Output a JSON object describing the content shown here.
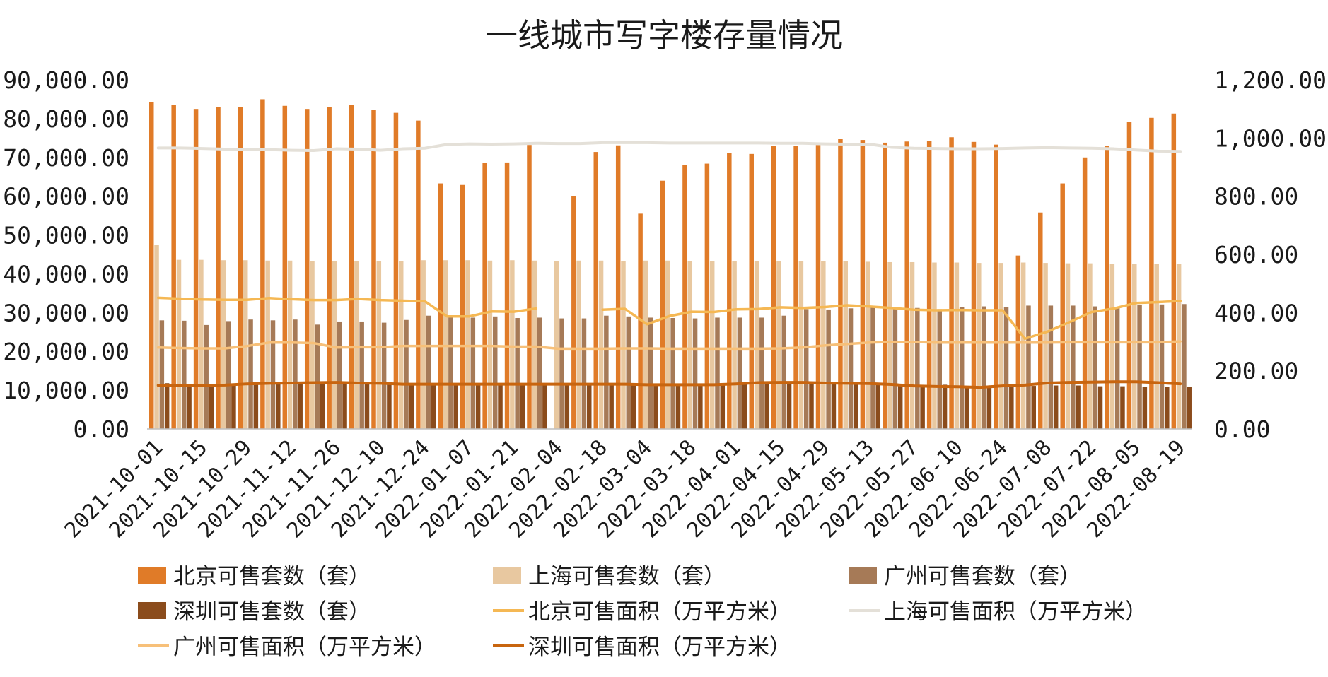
{
  "chart_data": {
    "type": "bar",
    "title": "一线城市写字楼存量情况",
    "x": [
      "2021-10-01",
      "2021-10-08",
      "2021-10-15",
      "2021-10-22",
      "2021-10-29",
      "2021-11-05",
      "2021-11-12",
      "2021-11-19",
      "2021-11-26",
      "2021-12-03",
      "2021-12-10",
      "2021-12-17",
      "2021-12-24",
      "2021-12-31",
      "2022-01-07",
      "2022-01-14",
      "2022-01-21",
      "2022-01-28",
      "2022-02-04",
      "2022-02-11",
      "2022-02-18",
      "2022-02-25",
      "2022-03-04",
      "2022-03-11",
      "2022-03-18",
      "2022-03-25",
      "2022-04-01",
      "2022-04-08",
      "2022-04-15",
      "2022-04-22",
      "2022-04-29",
      "2022-05-06",
      "2022-05-13",
      "2022-05-20",
      "2022-05-27",
      "2022-06-03",
      "2022-06-10",
      "2022-06-17",
      "2022-06-24",
      "2022-07-01",
      "2022-07-08",
      "2022-07-15",
      "2022-07-22",
      "2022-07-29",
      "2022-08-05",
      "2022-08-12",
      "2022-08-19"
    ],
    "x_tick_labels": [
      "2021-10-01",
      "2021-10-15",
      "2021-10-29",
      "2021-11-12",
      "2021-11-26",
      "2021-12-10",
      "2021-12-24",
      "2022-01-07",
      "2022-01-21",
      "2022-02-04",
      "2022-02-18",
      "2022-03-04",
      "2022-03-18",
      "2022-04-01",
      "2022-04-15",
      "2022-04-29",
      "2022-05-13",
      "2022-05-27",
      "2022-06-10",
      "2022-06-24",
      "2022-07-08",
      "2022-07-22",
      "2022-08-05",
      "2022-08-19"
    ],
    "y_left": {
      "min": 0,
      "max": 90000,
      "step": 10000,
      "tick_labels": [
        "0.00",
        "10,000.00",
        "20,000.00",
        "30,000.00",
        "40,000.00",
        "50,000.00",
        "60,000.00",
        "70,000.00",
        "80,000.00",
        "90,000.00"
      ]
    },
    "y_right": {
      "min": 0,
      "max": 1200,
      "step": 200,
      "tick_labels": [
        "0.00",
        "200.00",
        "400.00",
        "600.00",
        "800.00",
        "1,000.00",
        "1,200.00"
      ]
    },
    "grid": false,
    "legend_position": "bottom",
    "bar_series": [
      {
        "name": "北京可售套数（套）",
        "color": "#E07B28",
        "axis": "left",
        "values": [
          84200,
          83600,
          82500,
          82900,
          82900,
          85000,
          83300,
          82500,
          82900,
          83600,
          82300,
          81500,
          79500,
          63300,
          62900,
          68600,
          68700,
          73200,
          null,
          60000,
          71400,
          73100,
          55500,
          64000,
          68000,
          68400,
          71200,
          70900,
          72900,
          72900,
          73200,
          74700,
          74500,
          73800,
          74100,
          74300,
          75200,
          74000,
          73300,
          44700,
          55800,
          63300,
          70000,
          73000,
          79100,
          80200,
          81300
        ]
      },
      {
        "name": "上海可售套数（套）",
        "color": "#E8C8A0",
        "axis": "left",
        "values": [
          47400,
          43600,
          43600,
          43500,
          43500,
          43400,
          43400,
          43300,
          43300,
          43200,
          43200,
          43200,
          43500,
          43500,
          43500,
          43400,
          43500,
          43400,
          43300,
          43400,
          43400,
          43300,
          43400,
          43400,
          43300,
          43300,
          43300,
          43200,
          43300,
          43300,
          43200,
          43200,
          43100,
          43000,
          43000,
          42900,
          42900,
          42800,
          42800,
          42900,
          42800,
          42700,
          42700,
          42600,
          42600,
          42500,
          42500
        ]
      },
      {
        "name": "广州可售套数（套）",
        "color": "#A67A57",
        "axis": "left",
        "values": [
          28000,
          27900,
          26800,
          27800,
          28200,
          28000,
          28200,
          26900,
          27700,
          27700,
          27400,
          28100,
          29200,
          28700,
          28700,
          29000,
          28600,
          28700,
          28500,
          28500,
          29200,
          29000,
          28700,
          28600,
          28500,
          28700,
          28700,
          28700,
          29200,
          30900,
          30800,
          31100,
          31700,
          31500,
          31200,
          30900,
          31400,
          31600,
          31400,
          31800,
          31800,
          31800,
          31600,
          31200,
          32000,
          32100,
          32200
        ]
      },
      {
        "name": "深圳可售套数（套）",
        "color": "#8B4C1C",
        "axis": "left",
        "values": [
          11800,
          11500,
          11600,
          11600,
          11800,
          11900,
          12100,
          12000,
          12100,
          12000,
          11900,
          11700,
          11700,
          11600,
          11700,
          11700,
          11700,
          11700,
          11700,
          11600,
          11500,
          11500,
          11600,
          11600,
          11600,
          11500,
          11800,
          12100,
          11900,
          11800,
          11700,
          11700,
          11300,
          11200,
          11300,
          11400,
          11100,
          11000,
          11000,
          11100,
          11200,
          11200,
          11000,
          11000,
          10900,
          10900,
          10900
        ]
      }
    ],
    "line_series": [
      {
        "name": "北京可售面积（万平方米）",
        "color": "#F5B854",
        "axis": "right",
        "width": 3.5,
        "values": [
          451,
          448,
          445,
          444,
          444,
          450,
          446,
          443,
          443,
          447,
          443,
          441,
          439,
          387,
          387,
          404,
          403,
          414,
          null,
          null,
          410,
          413,
          360,
          388,
          403,
          402,
          411,
          412,
          418,
          416,
          419,
          425,
          421,
          416,
          410,
          408,
          409,
          408,
          408,
          310,
          334,
          367,
          402,
          414,
          433,
          436,
          440
        ]
      },
      {
        "name": "上海可售面积（万平方米）",
        "color": "#E4E0D8",
        "axis": "right",
        "width": 4,
        "values": [
          966,
          966,
          964,
          962,
          961,
          960,
          958,
          957,
          963,
          962,
          958,
          963,
          965,
          978,
          980,
          979,
          980,
          982,
          981,
          981,
          984,
          984,
          984,
          983,
          983,
          983,
          983,
          983,
          982,
          982,
          980,
          979,
          979,
          968,
          965,
          964,
          963,
          963,
          964,
          966,
          967,
          966,
          965,
          963,
          959,
          955,
          954
        ]
      },
      {
        "name": "广州可售面积（万平方米）",
        "color": "#F7C079",
        "axis": "right",
        "width": 3.5,
        "values": [
          280,
          278,
          277,
          277,
          285,
          297,
          297,
          295,
          280,
          281,
          281,
          285,
          285,
          285,
          285,
          285,
          283,
          283,
          276,
          276,
          276,
          277,
          277,
          276,
          276,
          276,
          276,
          276,
          277,
          280,
          287,
          292,
          297,
          299,
          299,
          297,
          297,
          297,
          297,
          297,
          297,
          298,
          298,
          298,
          298,
          298,
          301
        ]
      },
      {
        "name": "深圳可售面积（万平方米）",
        "color": "#C8650F",
        "axis": "right",
        "width": 4,
        "values": [
          150,
          149,
          150,
          151,
          155,
          157,
          158,
          159,
          160,
          158,
          157,
          154,
          154,
          154,
          154,
          154,
          154,
          154,
          154,
          154,
          154,
          154,
          152,
          152,
          152,
          152,
          155,
          159,
          160,
          160,
          158,
          157,
          156,
          153,
          148,
          146,
          145,
          143,
          148,
          151,
          158,
          160,
          161,
          162,
          162,
          159,
          155
        ]
      }
    ],
    "legend": [
      "北京可售套数（套）",
      "上海可售套数（套）",
      "广州可售套数（套）",
      "深圳可售套数（套）",
      "北京可售面积（万平方米）",
      "上海可售面积（万平方米）",
      "广州可售面积（万平方米）",
      "深圳可售面积（万平方米）"
    ]
  }
}
